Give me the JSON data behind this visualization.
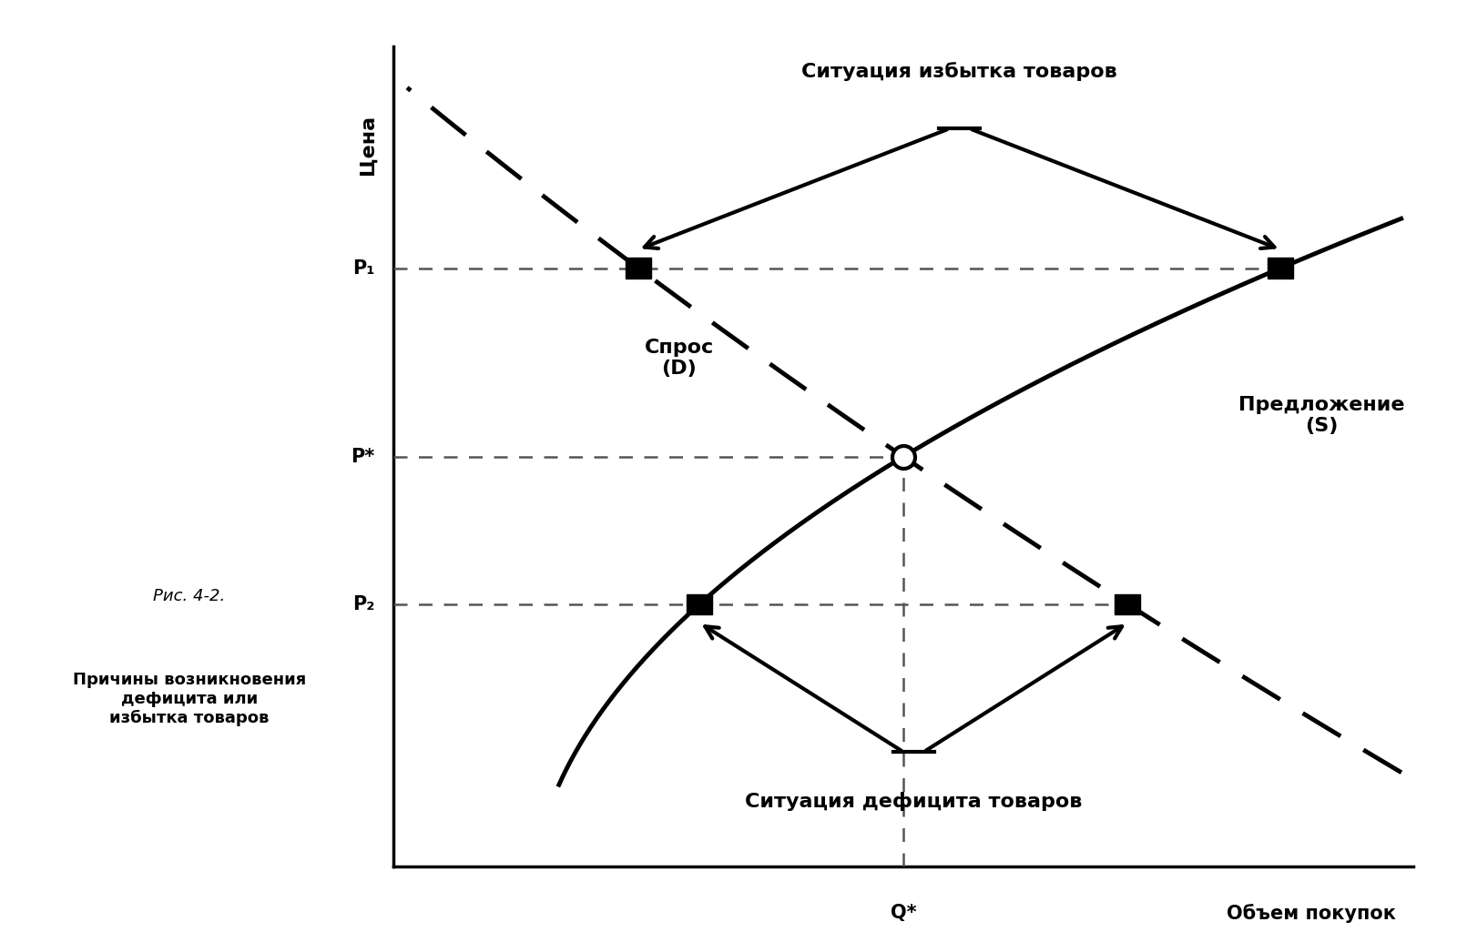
{
  "title_surplus": "Ситуация избытка товаров",
  "title_deficit": "Ситуация дефицита товаров",
  "label_demand": "Спрос\n(D)",
  "label_supply": "Предложение\n(S)",
  "label_p1": "P₁",
  "label_p2": "P₂",
  "label_pstar": "P*",
  "label_qstar": "Q*",
  "xlabel": "Объем покупок",
  "ylabel": "Цена",
  "caption_italic": "Рис. 4-2.",
  "caption_bold": "Причины возникновения\nдефицита или\nизбытка товаров",
  "bg_color": "#ffffff",
  "plot_bg": "#ffffff",
  "p_star": 0.5,
  "p1": 0.73,
  "p2": 0.32,
  "q_star": 0.5,
  "q_d_p1": 0.24,
  "q_s_p1": 0.87,
  "q_d_p2": 0.72,
  "q_s_p2": 0.3
}
